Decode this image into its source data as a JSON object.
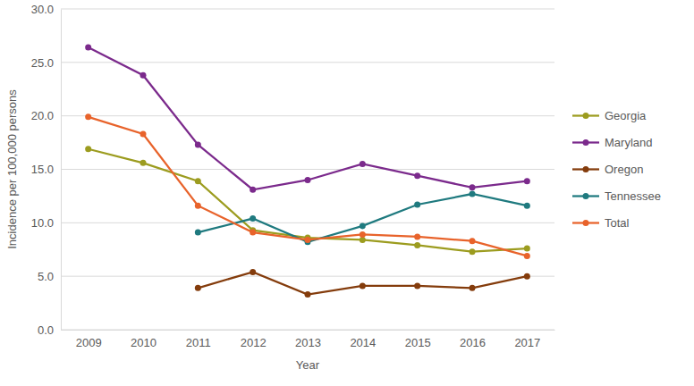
{
  "chart_data": {
    "type": "line",
    "y_label": "Incidence per 100,000 persons",
    "x_label": "Year",
    "categories": [
      "2009",
      "2010",
      "2011",
      "2012",
      "2013",
      "2014",
      "2015",
      "2016",
      "2017"
    ],
    "series": [
      {
        "name": "Georgia",
        "color": "#9c9c1f",
        "values": [
          16.9,
          15.6,
          13.9,
          9.3,
          8.6,
          8.4,
          7.9,
          7.3,
          7.6
        ]
      },
      {
        "name": "Maryland",
        "color": "#7b2a8c",
        "values": [
          26.4,
          23.8,
          17.3,
          13.1,
          14.0,
          15.5,
          14.4,
          13.3,
          13.9
        ]
      },
      {
        "name": "Oregon",
        "color": "#843c0c",
        "values": [
          null,
          null,
          3.9,
          5.4,
          3.3,
          4.1,
          4.1,
          3.9,
          5.0
        ]
      },
      {
        "name": "Tennessee",
        "color": "#1f7a7f",
        "values": [
          null,
          null,
          9.1,
          10.4,
          8.2,
          9.7,
          11.7,
          12.7,
          11.6
        ]
      },
      {
        "name": "Total",
        "color": "#e8632b",
        "values": [
          19.9,
          18.3,
          11.6,
          9.1,
          8.4,
          8.9,
          8.7,
          8.3,
          6.9
        ]
      }
    ],
    "ylim": [
      0,
      30
    ],
    "yticks": [
      {
        "value": 0,
        "label": "0.0"
      },
      {
        "value": 5,
        "label": "5.0"
      },
      {
        "value": 10,
        "label": "10.0"
      },
      {
        "value": 15,
        "label": "15.0"
      },
      {
        "value": 20,
        "label": "20.0"
      },
      {
        "value": 25,
        "label": "25.0"
      },
      {
        "value": 30,
        "label": "30.0"
      }
    ],
    "grid": true,
    "legend": "right",
    "marker": "circle",
    "line_style": "solid"
  }
}
